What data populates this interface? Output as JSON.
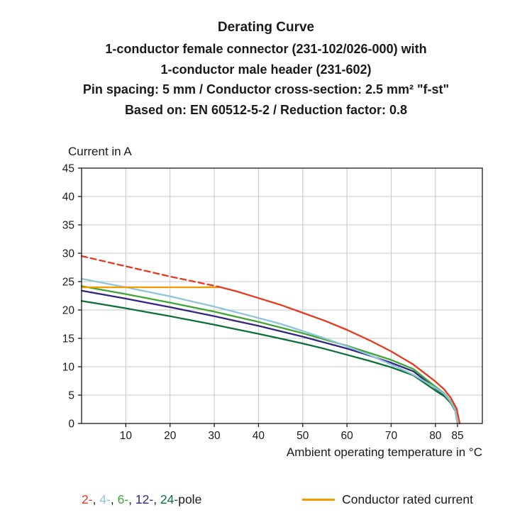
{
  "header": {
    "title": "Derating Curve",
    "subtitle_lines": [
      "1-conductor female connector (231-102/026-000) with",
      "1-conductor male header (231-602)",
      "Pin spacing: 5 mm / Conductor cross-section: 2.5 mm² \"f-st\"",
      "Based on: EN 60512-5-2 / Reduction factor: 0.8"
    ]
  },
  "chart_data": {
    "type": "line",
    "title": "Derating Curve",
    "xlabel": "Ambient operating temperature in °C",
    "ylabel": "Current in A",
    "xlim": [
      0,
      91
    ],
    "ylim": [
      0,
      45
    ],
    "x_ticks": [
      10,
      20,
      30,
      40,
      50,
      60,
      70,
      80,
      85
    ],
    "y_ticks": [
      0,
      5,
      10,
      15,
      20,
      25,
      30,
      35,
      40,
      45
    ],
    "grid": true,
    "legend_position": "bottom",
    "series": [
      {
        "name": "24-pole",
        "color": "#0c7038",
        "dash": false,
        "points": [
          [
            0,
            21.6
          ],
          [
            5,
            20.95
          ],
          [
            10,
            20.3
          ],
          [
            15,
            19.6
          ],
          [
            20,
            18.9
          ],
          [
            25,
            18.15
          ],
          [
            30,
            17.4
          ],
          [
            35,
            16.6
          ],
          [
            40,
            15.8
          ],
          [
            45,
            14.95
          ],
          [
            50,
            14.1
          ],
          [
            55,
            13.15
          ],
          [
            60,
            12.1
          ],
          [
            65,
            11.05
          ],
          [
            70,
            9.9
          ],
          [
            75,
            8.5
          ],
          [
            80,
            5.8
          ],
          [
            82,
            4.8
          ],
          [
            83.5,
            3.6
          ],
          [
            84.5,
            2.2
          ],
          [
            85,
            0
          ]
        ]
      },
      {
        "name": "12-pole",
        "color": "#312783",
        "dash": false,
        "points": [
          [
            0,
            23.4
          ],
          [
            5,
            22.7
          ],
          [
            10,
            22.0
          ],
          [
            15,
            21.25
          ],
          [
            20,
            20.5
          ],
          [
            25,
            19.7
          ],
          [
            30,
            18.9
          ],
          [
            35,
            18.05
          ],
          [
            40,
            17.2
          ],
          [
            45,
            16.25
          ],
          [
            50,
            15.3
          ],
          [
            55,
            14.25
          ],
          [
            60,
            13.2
          ],
          [
            65,
            12.0
          ],
          [
            70,
            10.7
          ],
          [
            75,
            9.2
          ],
          [
            80,
            6.2
          ],
          [
            82,
            5.1
          ],
          [
            83.5,
            3.8
          ],
          [
            84.5,
            2.3
          ],
          [
            85,
            0
          ]
        ]
      },
      {
        "name": "6-pole",
        "color": "#3fa535",
        "dash": false,
        "points": [
          [
            0,
            24.2
          ],
          [
            5,
            23.5
          ],
          [
            10,
            22.8
          ],
          [
            15,
            22.05
          ],
          [
            20,
            21.3
          ],
          [
            25,
            20.5
          ],
          [
            30,
            19.7
          ],
          [
            35,
            18.8
          ],
          [
            40,
            17.9
          ],
          [
            45,
            16.9
          ],
          [
            50,
            15.9
          ],
          [
            55,
            14.8
          ],
          [
            60,
            13.7
          ],
          [
            65,
            12.45
          ],
          [
            70,
            11.2
          ],
          [
            75,
            9.6
          ],
          [
            80,
            6.5
          ],
          [
            82,
            5.3
          ],
          [
            83.5,
            3.9
          ],
          [
            84.5,
            2.4
          ],
          [
            85,
            0
          ]
        ]
      },
      {
        "name": "4-pole",
        "color": "#8fc5d8",
        "dash": false,
        "points": [
          [
            0,
            25.5
          ],
          [
            5,
            24.75
          ],
          [
            10,
            24.0
          ],
          [
            15,
            23.2
          ],
          [
            20,
            22.4
          ],
          [
            25,
            21.5
          ],
          [
            30,
            20.6
          ],
          [
            35,
            19.6
          ],
          [
            40,
            18.6
          ],
          [
            45,
            17.55
          ],
          [
            50,
            16.3
          ],
          [
            55,
            15.0
          ],
          [
            60,
            13.6
          ],
          [
            65,
            12.1
          ],
          [
            70,
            10.4
          ],
          [
            75,
            8.6
          ],
          [
            80,
            6.3
          ],
          [
            82,
            5.2
          ],
          [
            83.5,
            3.8
          ],
          [
            84.5,
            2.3
          ],
          [
            85,
            0
          ]
        ]
      },
      {
        "name": "rated-current",
        "color": "#f59b00",
        "dash": false,
        "points": [
          [
            0,
            24
          ],
          [
            31,
            24
          ]
        ]
      },
      {
        "name": "2-pole-dashed",
        "color": "#e8391d",
        "dash": true,
        "points": [
          [
            0,
            29.5
          ],
          [
            10,
            27.7
          ],
          [
            20,
            25.9
          ],
          [
            31,
            24.1
          ]
        ]
      },
      {
        "name": "2-pole",
        "color": "#e8391d",
        "dash": false,
        "points": [
          [
            31,
            24.1
          ],
          [
            35,
            23.3
          ],
          [
            40,
            22.1
          ],
          [
            45,
            20.9
          ],
          [
            50,
            19.5
          ],
          [
            55,
            18.1
          ],
          [
            60,
            16.5
          ],
          [
            65,
            14.7
          ],
          [
            70,
            12.7
          ],
          [
            75,
            10.4
          ],
          [
            80,
            7.4
          ],
          [
            82,
            6.0
          ],
          [
            83.5,
            4.5
          ],
          [
            84.8,
            2.6
          ],
          [
            85.5,
            0
          ]
        ]
      }
    ]
  },
  "legend": {
    "poles": [
      {
        "label": "2-",
        "color": "#e8391d"
      },
      {
        "label": "4-",
        "color": "#8fc5d8"
      },
      {
        "label": "6-",
        "color": "#3fa535"
      },
      {
        "label": "12-",
        "color": "#312783"
      },
      {
        "label": "24-",
        "color": "#0c7038"
      }
    ],
    "separator": ", ",
    "pole_suffix": "pole",
    "rated": {
      "label": "Conductor rated current",
      "color": "#f59b00"
    }
  }
}
